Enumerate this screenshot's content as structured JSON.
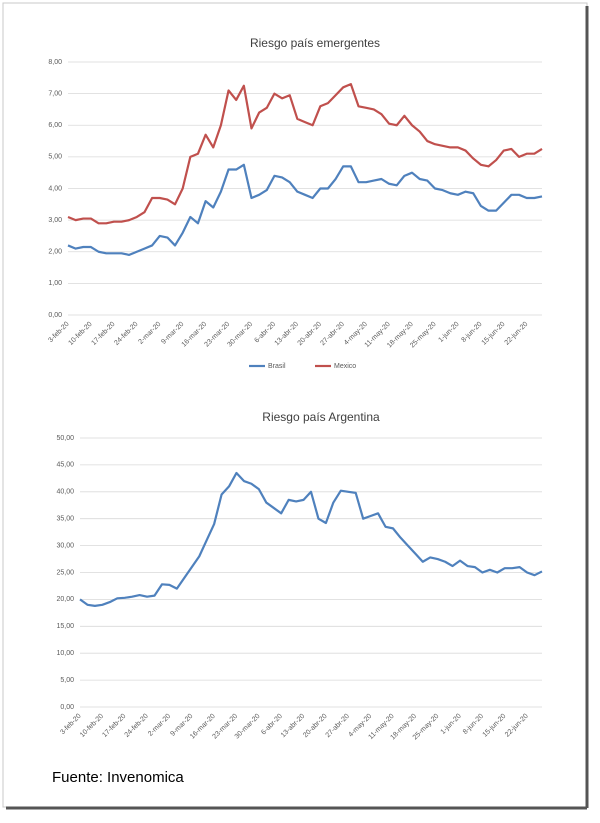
{
  "chart_data": [
    {
      "type": "line",
      "title": "Riesgo país emergentes",
      "categories": [
        "3-feb-20",
        null,
        null,
        "10-feb-20",
        null,
        null,
        "17-feb-20",
        null,
        null,
        "24-feb-20",
        null,
        null,
        "2-mar-20",
        null,
        null,
        "9-mar-20",
        null,
        null,
        "16-mar-20",
        null,
        null,
        "23-mar-20",
        null,
        null,
        "30-mar-20",
        null,
        null,
        "6-abr-20",
        null,
        null,
        "13-abr-20",
        null,
        null,
        "20-abr-20",
        null,
        null,
        "27-abr-20",
        null,
        null,
        "4-may-20",
        null,
        null,
        "11-may-20",
        null,
        null,
        "18-may-20",
        null,
        null,
        "25-may-20",
        null,
        null,
        "1-jun-20",
        null,
        null,
        "8-jun-20",
        null,
        null,
        "15-jun-20",
        null,
        null,
        "22-jun-20",
        null,
        null
      ],
      "series": [
        {
          "name": "Brasil",
          "color": "#4f81bd",
          "values": [
            2.2,
            2.1,
            2.15,
            2.15,
            2.0,
            1.95,
            1.95,
            1.95,
            1.9,
            2.0,
            2.1,
            2.2,
            2.5,
            2.45,
            2.2,
            2.6,
            3.1,
            2.9,
            3.6,
            3.4,
            3.9,
            4.6,
            4.6,
            4.75,
            3.7,
            3.8,
            3.95,
            4.4,
            4.35,
            4.2,
            3.9,
            3.8,
            3.7,
            4.0,
            4.0,
            4.3,
            4.7,
            4.7,
            4.2,
            4.2,
            4.25,
            4.3,
            4.15,
            4.1,
            4.4,
            4.5,
            4.3,
            4.25,
            4.0,
            3.95,
            3.85,
            3.8,
            3.9,
            3.85,
            3.45,
            3.3,
            3.3,
            3.55,
            3.8,
            3.8,
            3.7,
            3.7,
            3.75
          ]
        },
        {
          "name": "Mexico",
          "color": "#c0504d",
          "values": [
            3.1,
            3.0,
            3.05,
            3.05,
            2.9,
            2.9,
            2.95,
            2.95,
            3.0,
            3.1,
            3.25,
            3.7,
            3.7,
            3.65,
            3.5,
            4.0,
            5.0,
            5.1,
            5.7,
            5.3,
            6.0,
            7.1,
            6.8,
            7.25,
            5.9,
            6.4,
            6.55,
            7.0,
            6.85,
            6.95,
            6.2,
            6.1,
            6.0,
            6.6,
            6.7,
            6.95,
            7.2,
            7.3,
            6.6,
            6.55,
            6.5,
            6.35,
            6.05,
            6.0,
            6.3,
            6.0,
            5.8,
            5.5,
            5.4,
            5.35,
            5.3,
            5.3,
            5.2,
            4.95,
            4.75,
            4.7,
            4.9,
            5.2,
            5.25,
            5.0,
            5.1,
            5.1,
            5.25
          ]
        }
      ],
      "ylim": [
        0,
        8
      ],
      "yticks": [
        {
          "value": 0,
          "label": "0,00"
        },
        {
          "value": 1,
          "label": "1,00"
        },
        {
          "value": 2,
          "label": "2,00"
        },
        {
          "value": 3,
          "label": "3,00"
        },
        {
          "value": 4,
          "label": "4,00"
        },
        {
          "value": 5,
          "label": "5,00"
        },
        {
          "value": 6,
          "label": "6,00"
        },
        {
          "value": 7,
          "label": "7,00"
        },
        {
          "value": 8,
          "label": "8,00"
        }
      ],
      "grid": true,
      "legend": "bottom"
    },
    {
      "type": "line",
      "title": "Riesgo país Argentina",
      "categories": [
        "3-feb-20",
        null,
        null,
        "10-feb-20",
        null,
        null,
        "17-feb-20",
        null,
        null,
        "24-feb-20",
        null,
        null,
        "2-mar-20",
        null,
        null,
        "9-mar-20",
        null,
        null,
        "16-mar-20",
        null,
        null,
        "23-mar-20",
        null,
        null,
        "30-mar-20",
        null,
        null,
        "6-abr-20",
        null,
        null,
        "13-abr-20",
        null,
        null,
        "20-abr-20",
        null,
        null,
        "27-abr-20",
        null,
        null,
        "4-may-20",
        null,
        null,
        "11-may-20",
        null,
        null,
        "18-may-20",
        null,
        null,
        "25-may-20",
        null,
        null,
        "1-jun-20",
        null,
        null,
        "8-jun-20",
        null,
        null,
        "15-jun-20",
        null,
        null,
        "22-jun-20",
        null,
        null
      ],
      "series": [
        {
          "color": "#4f81bd",
          "values": [
            20.0,
            19.0,
            18.8,
            19.0,
            19.5,
            20.2,
            20.3,
            20.5,
            20.8,
            20.5,
            20.7,
            22.8,
            22.7,
            22.0,
            24.0,
            26.0,
            28.0,
            31.0,
            34.0,
            39.5,
            41.0,
            43.5,
            42.0,
            41.5,
            40.5,
            38.0,
            37.0,
            36.0,
            38.5,
            38.2,
            38.5,
            40.0,
            35.0,
            34.2,
            38.0,
            40.2,
            40.0,
            39.8,
            35.0,
            35.5,
            36.0,
            33.5,
            33.2,
            31.5,
            30.0,
            28.5,
            27.0,
            27.8,
            27.5,
            27.0,
            26.2,
            27.2,
            26.2,
            26.0,
            25.0,
            25.5,
            25.0,
            25.8,
            25.8,
            26.0,
            25.0,
            24.5,
            25.2
          ]
        }
      ],
      "ylim": [
        0,
        50
      ],
      "yticks": [
        {
          "value": 0,
          "label": "0,00"
        },
        {
          "value": 5,
          "label": "5,00"
        },
        {
          "value": 10,
          "label": "10,00"
        },
        {
          "value": 15,
          "label": "15,00"
        },
        {
          "value": 20,
          "label": "20,00"
        },
        {
          "value": 25,
          "label": "25,00"
        },
        {
          "value": 30,
          "label": "30,00"
        },
        {
          "value": 35,
          "label": "35,00"
        },
        {
          "value": 40,
          "label": "40,00"
        },
        {
          "value": 45,
          "label": "45,00"
        },
        {
          "value": 50,
          "label": "50,00"
        }
      ],
      "grid": true
    }
  ],
  "source": "Fuente: Invenomica"
}
